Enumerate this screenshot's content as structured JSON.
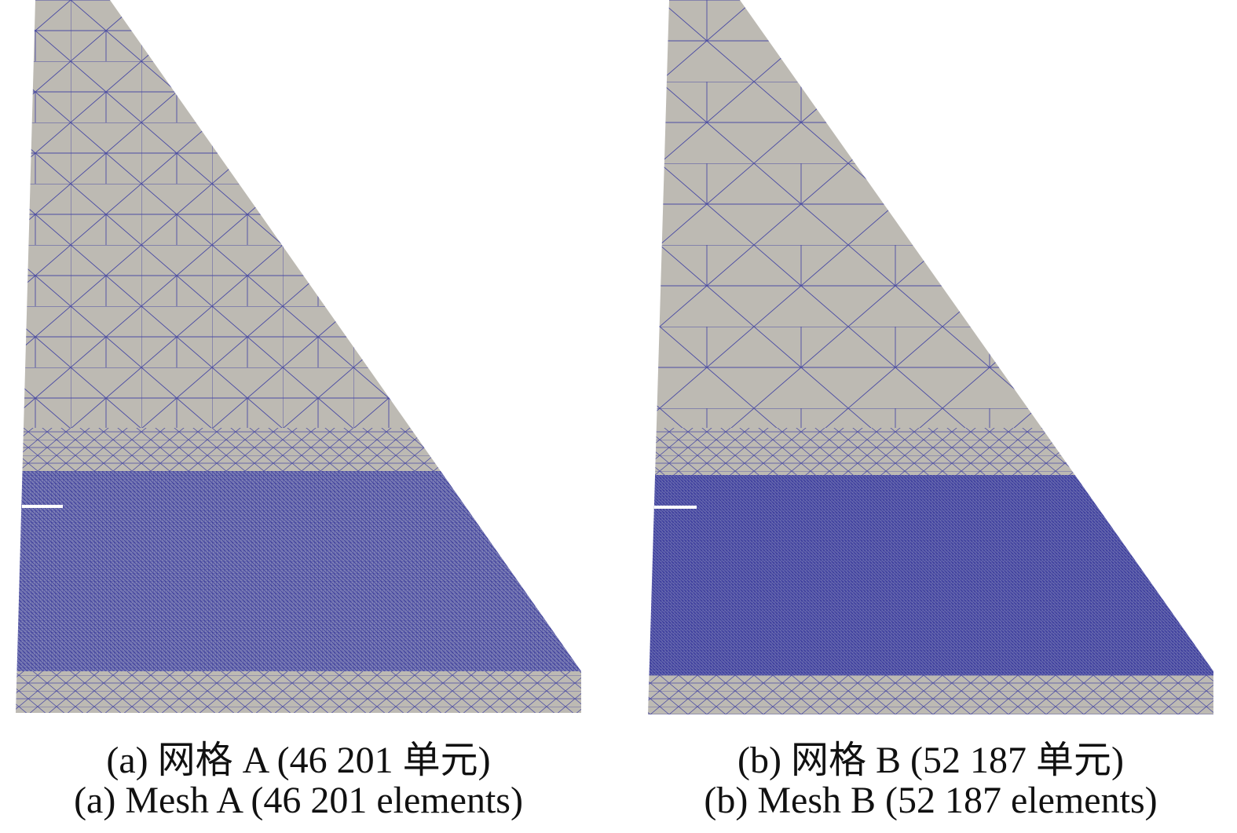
{
  "panels": [
    {
      "caption_zh": "(a) 网格 A (46 201 单元)",
      "caption_en": "(a) Mesh A (46 201 elements)"
    },
    {
      "caption_zh": "(b) 网格 B (52 187 单元)",
      "caption_en": "(b) Mesh B (52 187 elements)"
    }
  ]
}
